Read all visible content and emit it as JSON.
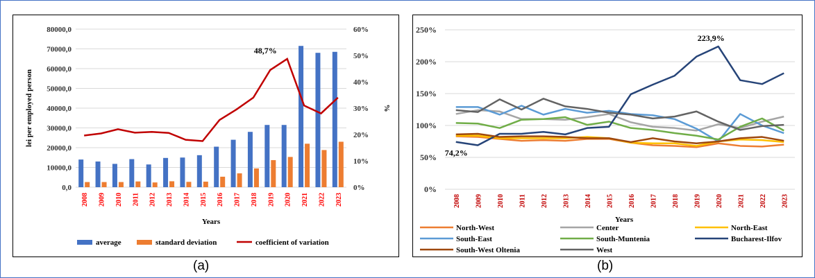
{
  "panels": {
    "a_label": "(a)",
    "b_label": "(b)"
  },
  "chart_data": [
    {
      "id": "a",
      "type": "bar",
      "x_label": "Years",
      "y_label": "lei per employed person",
      "y2_label": "%",
      "categories": [
        "2008",
        "2009",
        "2010",
        "2011",
        "2012",
        "2013",
        "2014",
        "2015",
        "2016",
        "2017",
        "2018",
        "2019",
        "2020",
        "2021",
        "2022",
        "2023"
      ],
      "ylim": [
        0,
        80000
      ],
      "y_ticks": [
        "0,0",
        "10000,0",
        "20000,0",
        "30000,0",
        "40000,0",
        "50000,0",
        "60000,0",
        "70000,0",
        "80000,0"
      ],
      "y2lim": [
        0,
        60
      ],
      "y2_ticks": [
        "0%",
        "10%",
        "20%",
        "30%",
        "40%",
        "50%",
        "60%"
      ],
      "series": [
        {
          "name": "average",
          "kind": "bar",
          "color": "#4472c4",
          "values": [
            14000,
            13000,
            11800,
            14200,
            11500,
            14800,
            15000,
            16200,
            20500,
            24000,
            28000,
            31500,
            31500,
            71500,
            68000,
            68500
          ]
        },
        {
          "name": "standard deviation",
          "kind": "bar",
          "color": "#ed7d31",
          "values": [
            2600,
            2600,
            2600,
            2900,
            2400,
            3000,
            2700,
            2800,
            5300,
            7000,
            9500,
            13700,
            15300,
            22000,
            18800,
            23000
          ]
        },
        {
          "name": "coefficient of variation",
          "kind": "line",
          "axis": "right",
          "color": "#c00000",
          "values": [
            19.6,
            20.4,
            22.0,
            20.7,
            21.0,
            20.6,
            18.0,
            17.5,
            25.5,
            29.5,
            34.0,
            44.5,
            48.7,
            31.0,
            28.0,
            34.0
          ]
        }
      ],
      "annotation": "48,7%",
      "grid": true,
      "legend_position": "bottom"
    },
    {
      "id": "b",
      "type": "line",
      "x_label": "Years",
      "categories": [
        "2008",
        "2009",
        "2010",
        "2011",
        "2012",
        "2013",
        "2014",
        "2015",
        "2016",
        "2017",
        "2018",
        "2019",
        "2020",
        "2021",
        "2022",
        "2023"
      ],
      "ylim": [
        0,
        250
      ],
      "y_ticks": [
        "0%",
        "50%",
        "100%",
        "150%",
        "200%",
        "250%"
      ],
      "series": [
        {
          "name": "North-West",
          "color": "#ed7d31",
          "values": [
            83,
            82,
            79,
            76,
            77,
            76,
            79,
            79,
            73,
            69,
            68,
            66,
            72,
            68,
            67,
            70
          ]
        },
        {
          "name": "Center",
          "color": "#a5a5a5",
          "values": [
            118,
            124,
            122,
            110,
            110,
            109,
            113,
            118,
            105,
            98,
            96,
            92,
            102,
            96,
            106,
            114
          ]
        },
        {
          "name": "North-East",
          "color": "#ffc000",
          "values": [
            84,
            84,
            80,
            80,
            80,
            80,
            82,
            80,
            73,
            72,
            72,
            68,
            75,
            78,
            77,
            74
          ]
        },
        {
          "name": "South-East",
          "color": "#5b9bd5",
          "values": [
            129,
            129,
            117,
            131,
            117,
            126,
            120,
            123,
            118,
            116,
            110,
            95,
            75,
            118,
            100,
            88
          ]
        },
        {
          "name": "South-Muntenia",
          "color": "#70ad47",
          "values": [
            104,
            103,
            96,
            109,
            110,
            113,
            101,
            106,
            96,
            93,
            88,
            84,
            78,
            98,
            111,
            92
          ]
        },
        {
          "name": "Bucharest-Ilfov",
          "color": "#264478",
          "values": [
            74.2,
            69,
            87,
            87,
            90,
            86,
            96,
            98,
            149,
            164,
            178,
            208,
            223.9,
            171,
            165,
            182
          ]
        },
        {
          "name": "South-West Oltenia",
          "color": "#9e480e",
          "values": [
            86,
            87,
            82,
            83,
            83,
            82,
            80,
            80,
            74,
            80,
            75,
            72,
            75,
            80,
            82,
            76
          ]
        },
        {
          "name": "West",
          "color": "#636363",
          "values": [
            124,
            121,
            141,
            125,
            142,
            130,
            126,
            120,
            117,
            111,
            114,
            122,
            106,
            93,
            99,
            101
          ]
        }
      ],
      "annotations": [
        "223,9%",
        "74,2%"
      ],
      "grid": true,
      "legend_position": "bottom"
    }
  ]
}
